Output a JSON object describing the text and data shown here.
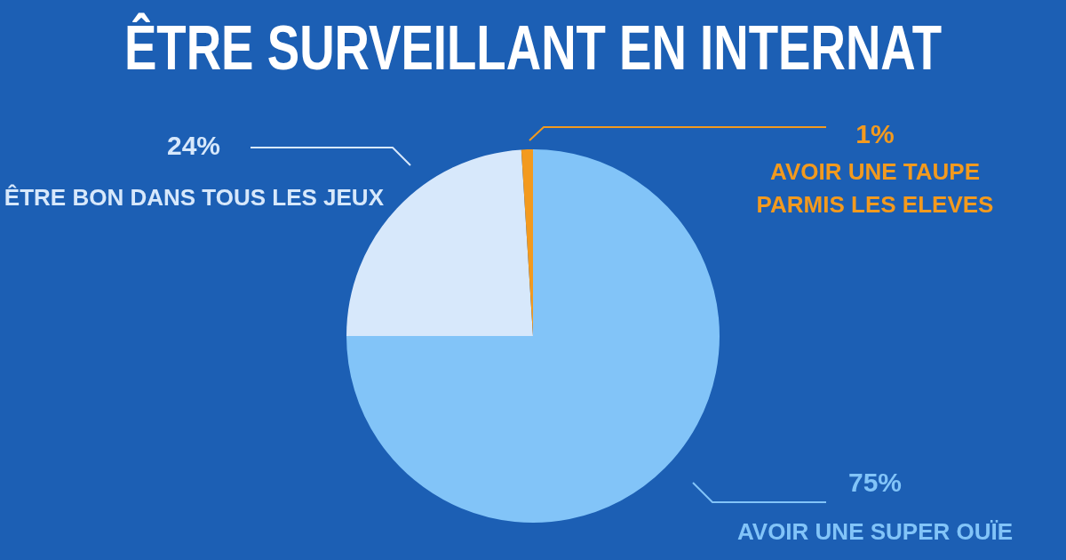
{
  "chart_data": {
    "type": "pie",
    "title": "ÊTRE SURVEILLANT EN INTERNAT",
    "categories": [
      "AVOIR UNE SUPER OUÏE",
      "ÊTRE BON DANS TOUS LES JEUX",
      "AVOIR UNE TAUPE PARMIS LES ELEVES"
    ],
    "values": [
      75,
      24,
      1
    ],
    "colors": [
      "#82c4f8",
      "#d7e8fb",
      "#f39a1e"
    ],
    "value_labels": [
      "75%",
      "24%",
      "1%"
    ],
    "legend": false
  }
}
